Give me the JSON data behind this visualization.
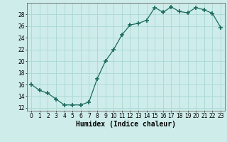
{
  "x": [
    0,
    1,
    2,
    3,
    4,
    5,
    6,
    7,
    8,
    9,
    10,
    11,
    12,
    13,
    14,
    15,
    16,
    17,
    18,
    19,
    20,
    21,
    22,
    23
  ],
  "y": [
    16,
    15,
    14.5,
    13.5,
    12.5,
    12.5,
    12.5,
    13,
    17,
    20,
    22,
    24.5,
    26.2,
    26.5,
    27,
    29.2,
    28.4,
    29.3,
    28.5,
    28.3,
    29.2,
    28.8,
    28.2,
    25.8
  ],
  "line_color": "#1a6b5e",
  "marker": "+",
  "marker_size": 4,
  "bg_color": "#ceecea",
  "grid_color": "#a8d8d4",
  "xlabel": "Humidex (Indice chaleur)",
  "xlim": [
    -0.5,
    23.5
  ],
  "ylim": [
    11.5,
    30
  ],
  "yticks": [
    12,
    14,
    16,
    18,
    20,
    22,
    24,
    26,
    28
  ],
  "xtick_labels": [
    "0",
    "1",
    "2",
    "3",
    "4",
    "5",
    "6",
    "7",
    "8",
    "9",
    "10",
    "11",
    "12",
    "13",
    "14",
    "15",
    "16",
    "17",
    "18",
    "19",
    "20",
    "21",
    "22",
    "23"
  ],
  "tick_fontsize": 5.5,
  "xlabel_fontsize": 7,
  "lw": 0.9
}
